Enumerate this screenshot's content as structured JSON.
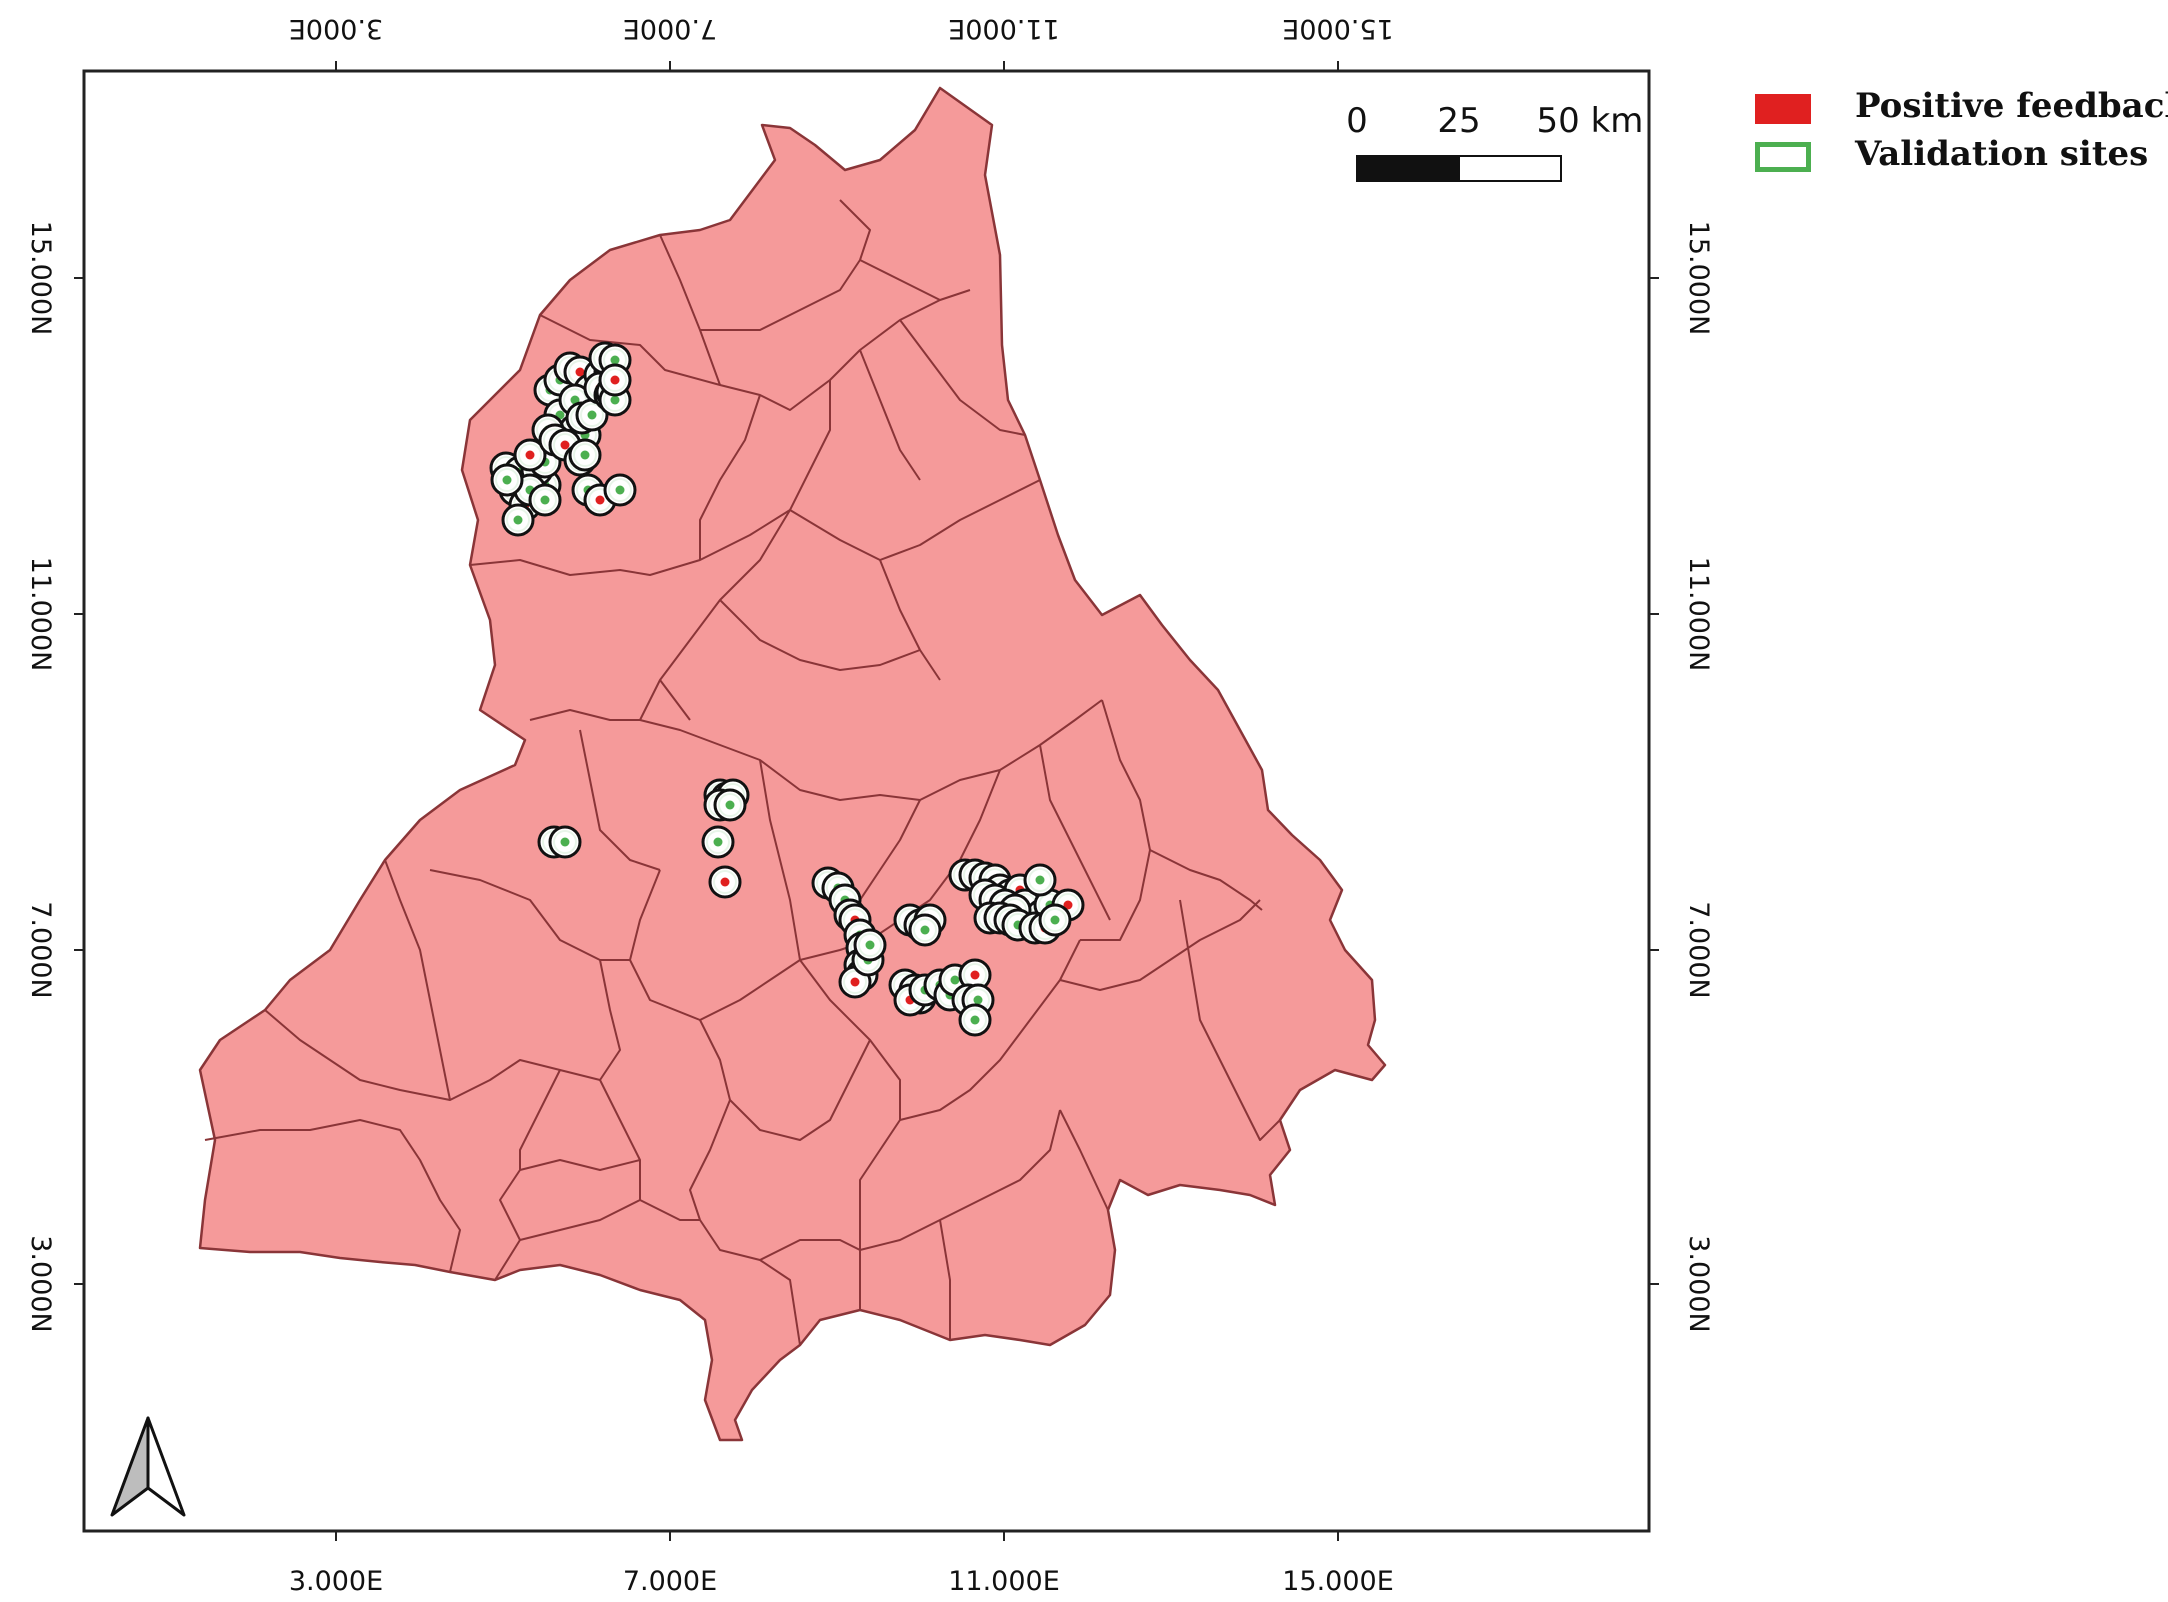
{
  "map": {
    "x_ticks": [
      "3.000E",
      "7.000E",
      "11.000E",
      "15.000E"
    ],
    "y_ticks": [
      "15.000N",
      "11.000N",
      "7.000N",
      "3.000N"
    ],
    "region_fill": "#f59a9a",
    "boundary_color": "#8a3538",
    "site_color": "#4caf50",
    "feedback_color": "#e02020",
    "north_arrow": "north-arrow-icon"
  },
  "scale_bar": {
    "labels": [
      "0",
      "25",
      "50 km"
    ]
  },
  "legend": {
    "items": [
      {
        "label": "Positive feedback",
        "swatch": "#e02020",
        "style": "filled"
      },
      {
        "label": "Validation sites",
        "swatch": "#4caf50",
        "style": "outline"
      }
    ]
  }
}
